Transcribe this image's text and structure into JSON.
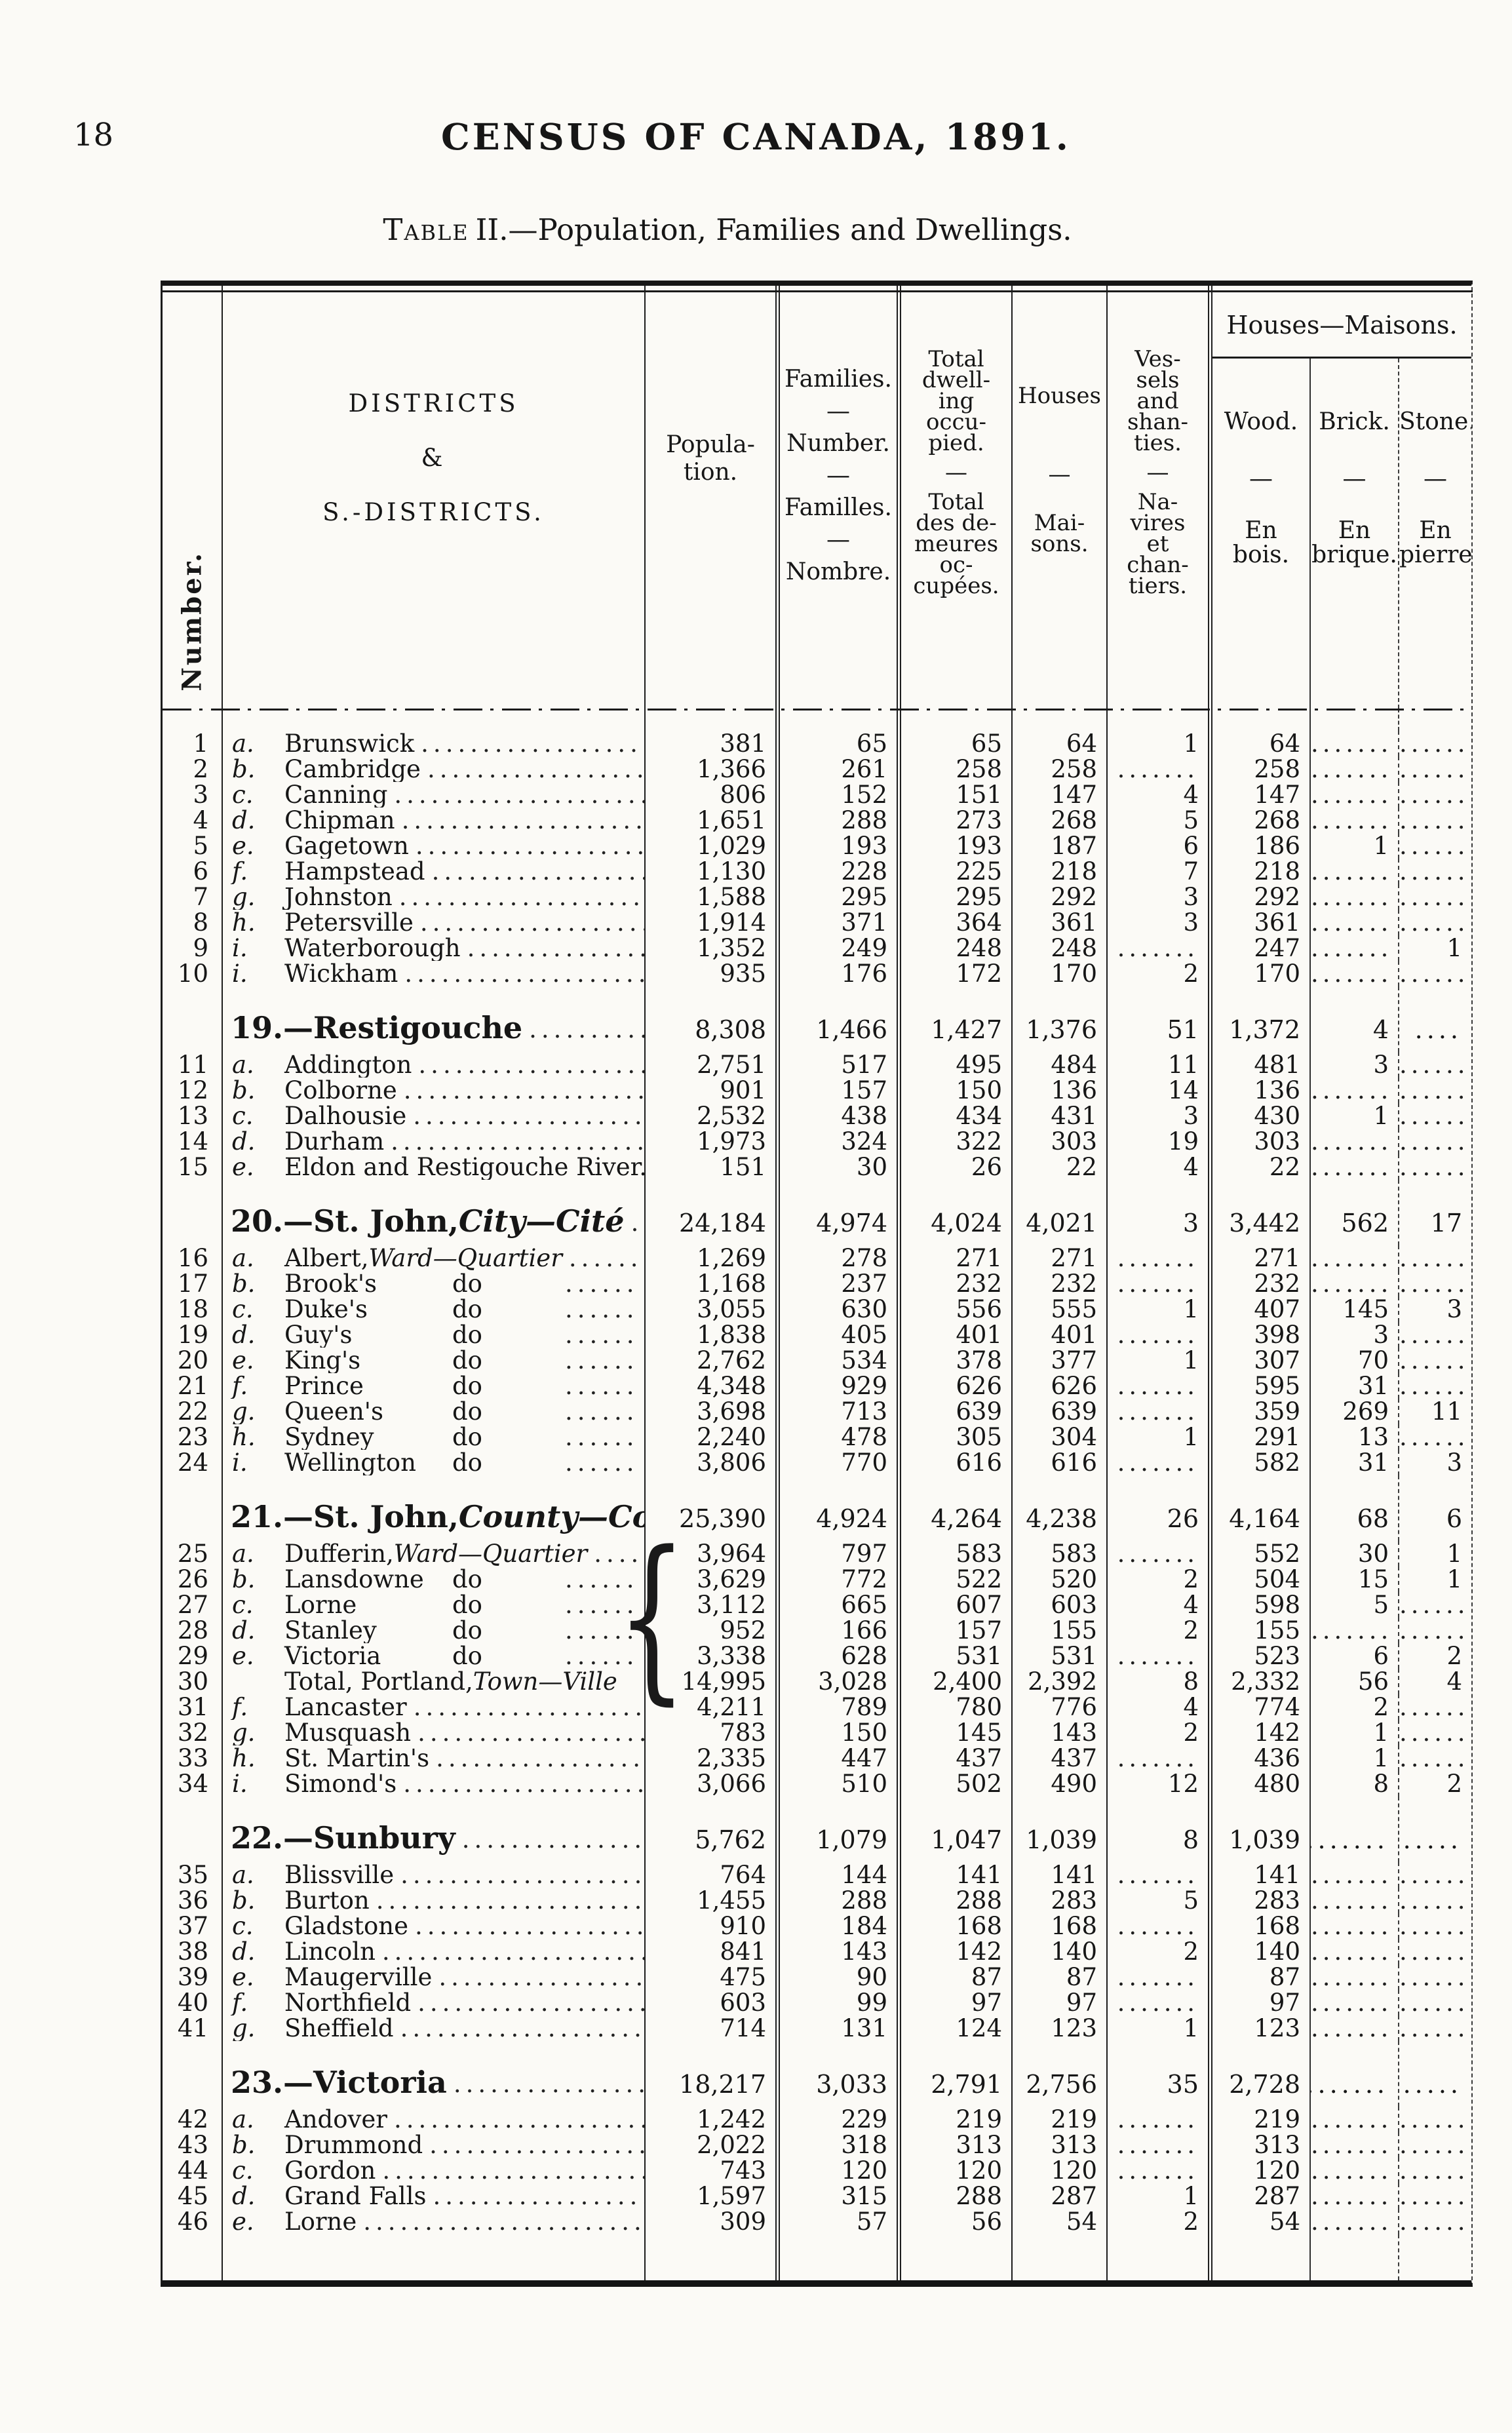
{
  "page": {
    "number": "18",
    "census_title": "CENSUS OF CANADA, 1891.",
    "caption_label": "Table",
    "caption_rest": "II.—Population, Families and Dwellings."
  },
  "table": {
    "brace": "{",
    "leader_dots": "..........................................................................",
    "headers": {
      "number_vertical": "Number.",
      "districts": [
        "DISTRICTS",
        "&",
        "S.-DISTRICTS."
      ],
      "population": [
        "Popula-",
        "tion."
      ],
      "families": [
        "Families.",
        "—",
        "Number.",
        "—",
        "Familles.",
        "—",
        "Nombre."
      ],
      "dwelling": [
        "Total",
        "dwell-",
        "ing",
        "occu-",
        "pied.",
        "—",
        "Total",
        "des de-",
        "meures",
        "oc-",
        "cupées."
      ],
      "houses": [
        "Houses",
        "—",
        "Mai-",
        "sons."
      ],
      "vessels": [
        "Ves-",
        "sels",
        "and",
        "shan-",
        "ties.",
        "—",
        "Na-",
        "vires",
        "et",
        "chan-",
        "tiers."
      ],
      "houses_group": "Houses—Maisons.",
      "wood": [
        "Wood.",
        "—",
        "En",
        "bois."
      ],
      "brick": [
        "Brick.",
        "—",
        "En",
        "brique."
      ],
      "stone": [
        "Stone.",
        "—",
        "En",
        "pierre."
      ]
    },
    "sections": [
      {
        "rows": [
          {
            "n": "1",
            "l": "a.",
            "nm": "Brunswick",
            "v": [
              "381",
              "65",
              "65",
              "64",
              "1",
              "64",
              ".......",
              "......."
            ]
          },
          {
            "n": "2",
            "l": "b.",
            "nm": "Cambridge",
            "v": [
              "1,366",
              "261",
              "258",
              "258",
              ".......",
              "258",
              ".......",
              "......."
            ]
          },
          {
            "n": "3",
            "l": "c.",
            "nm": "Canning",
            "v": [
              "806",
              "152",
              "151",
              "147",
              "4",
              "147",
              ".......",
              "......."
            ]
          },
          {
            "n": "4",
            "l": "d.",
            "nm": "Chipman",
            "v": [
              "1,651",
              "288",
              "273",
              "268",
              "5",
              "268",
              ".......",
              "......."
            ]
          },
          {
            "n": "5",
            "l": "e.",
            "nm": "Gagetown",
            "v": [
              "1,029",
              "193",
              "193",
              "187",
              "6",
              "186",
              "1",
              "......."
            ]
          },
          {
            "n": "6",
            "l": "f.",
            "nm": "Hampstead",
            "v": [
              "1,130",
              "228",
              "225",
              "218",
              "7",
              "218",
              ".......",
              "......."
            ]
          },
          {
            "n": "7",
            "l": "g.",
            "nm": "Johnston",
            "v": [
              "1,588",
              "295",
              "295",
              "292",
              "3",
              "292",
              ".......",
              "......."
            ]
          },
          {
            "n": "8",
            "l": "h.",
            "nm": "Petersville",
            "v": [
              "1,914",
              "371",
              "364",
              "361",
              "3",
              "361",
              ".......",
              "......."
            ]
          },
          {
            "n": "9",
            "l": "i.",
            "nm": "Waterborough",
            "v": [
              "1,352",
              "249",
              "248",
              "248",
              ".......",
              "247",
              ".......",
              "1"
            ]
          },
          {
            "n": "10",
            "l": "i.",
            "nm": "Wickham",
            "v": [
              "935",
              "176",
              "172",
              "170",
              "2",
              "170",
              ".......",
              "......."
            ]
          }
        ]
      },
      {
        "h": {
          "num": "19.",
          "nm": "—Restigouche",
          "vals": [
            "8,308",
            "1,466",
            "1,427",
            "1,376",
            "51",
            "1,372",
            "4",
            ". ...."
          ]
        },
        "rows": [
          {
            "n": "11",
            "l": "a.",
            "nm": "Addington",
            "v": [
              "2,751",
              "517",
              "495",
              "484",
              "11",
              "481",
              "3",
              "......."
            ]
          },
          {
            "n": "12",
            "l": "b.",
            "nm": "Colborne",
            "v": [
              "901",
              "157",
              "150",
              "136",
              "14",
              "136",
              ".......",
              "......."
            ]
          },
          {
            "n": "13",
            "l": "c.",
            "nm": "Dalhousie",
            "v": [
              "2,532",
              "438",
              "434",
              "431",
              "3",
              "430",
              "1",
              "......."
            ]
          },
          {
            "n": "14",
            "l": "d.",
            "nm": "Durham",
            "v": [
              "1,973",
              "324",
              "322",
              "303",
              "19",
              "303",
              ".......",
              "......."
            ]
          },
          {
            "n": "15",
            "l": "e.",
            "nm": "Eldon and Restigouche River..",
            "nold": true,
            "v": [
              "151",
              "30",
              "26",
              "22",
              "4",
              "22",
              ".......",
              "......."
            ]
          }
        ]
      },
      {
        "h": {
          "num": "20.",
          "nm": "—St. John, ",
          "it": "City—Cité",
          "vals": [
            "24,184",
            "4,974",
            "4,024",
            "4,021",
            "3",
            "3,442",
            "562",
            "17"
          ]
        },
        "rows": [
          {
            "n": "16",
            "l": "a.",
            "nm": "Albert, ",
            "it": "Ward—Quartier",
            "v": [
              "1,269",
              "278",
              "271",
              "271",
              ".......",
              "271",
              ".......",
              "......."
            ]
          },
          {
            "n": "17",
            "l": "b.",
            "nm": "Brook's",
            "do": true,
            "v": [
              "1,168",
              "237",
              "232",
              "232",
              ".......",
              "232",
              ".......",
              "......."
            ]
          },
          {
            "n": "18",
            "l": "c.",
            "nm": "Duke's",
            "do": true,
            "v": [
              "3,055",
              "630",
              "556",
              "555",
              "1",
              "407",
              "145",
              "3"
            ]
          },
          {
            "n": "19",
            "l": "d.",
            "nm": "Guy's",
            "do": true,
            "v": [
              "1,838",
              "405",
              "401",
              "401",
              ".......",
              "398",
              "3",
              "......."
            ]
          },
          {
            "n": "20",
            "l": "e.",
            "nm": "King's",
            "do": true,
            "v": [
              "2,762",
              "534",
              "378",
              "377",
              "1",
              "307",
              "70",
              "......."
            ]
          },
          {
            "n": "21",
            "l": "f.",
            "nm": "Prince",
            "do": true,
            "v": [
              "4,348",
              "929",
              "626",
              "626",
              ".......",
              "595",
              "31",
              "......."
            ]
          },
          {
            "n": "22",
            "l": "g.",
            "nm": "Queen's",
            "do": true,
            "v": [
              "3,698",
              "713",
              "639",
              "639",
              ".......",
              "359",
              "269",
              "11"
            ]
          },
          {
            "n": "23",
            "l": "h.",
            "nm": "Sydney",
            "do": true,
            "v": [
              "2,240",
              "478",
              "305",
              "304",
              "1",
              "291",
              "13",
              "......."
            ]
          },
          {
            "n": "24",
            "l": "i.",
            "nm": "Wellington",
            "do": true,
            "v": [
              "3,806",
              "770",
              "616",
              "616",
              ".......",
              "582",
              "31",
              "3"
            ]
          }
        ]
      },
      {
        "h": {
          "num": "21.",
          "nm": "—St. John, ",
          "it": "County—Comté.",
          "nold": true,
          "vals": [
            "25,390",
            "4,924",
            "4,264",
            "4,238",
            "26",
            "4,164",
            "68",
            "6"
          ]
        },
        "brace_rows": [
          0,
          5
        ],
        "rows": [
          {
            "n": "25",
            "l": "a.",
            "nm": "Dufferin, ",
            "it": "Ward—Quartier",
            "v": [
              "3,964",
              "797",
              "583",
              "583",
              ".......",
              "552",
              "30",
              "1"
            ]
          },
          {
            "n": "26",
            "l": "b.",
            "nm": "Lansdowne",
            "do": true,
            "v": [
              "3,629",
              "772",
              "522",
              "520",
              "2",
              "504",
              "15",
              "1"
            ]
          },
          {
            "n": "27",
            "l": "c.",
            "nm": "Lorne",
            "do": true,
            "v": [
              "3,112",
              "665",
              "607",
              "603",
              "4",
              "598",
              "5",
              "......."
            ]
          },
          {
            "n": "28",
            "l": "d.",
            "nm": "Stanley",
            "do": true,
            "v": [
              "952",
              "166",
              "157",
              "155",
              "2",
              "155",
              ".......",
              "......."
            ]
          },
          {
            "n": "29",
            "l": "e.",
            "nm": "Victoria",
            "do": true,
            "v": [
              "3,338",
              "628",
              "531",
              "531",
              ".......",
              "523",
              "6",
              "2"
            ]
          },
          {
            "n": "30",
            "l": "",
            "nm": "Total, Portland, ",
            "it": "Town—Ville",
            "nold": true,
            "v": [
              "14,995",
              "3,028",
              "2,400",
              "2,392",
              "8",
              "2,332",
              "56",
              "4"
            ]
          },
          {
            "n": "31",
            "l": "f.",
            "nm": "Lancaster",
            "v": [
              "4,211",
              "789",
              "780",
              "776",
              "4",
              "774",
              "2",
              "......."
            ]
          },
          {
            "n": "32",
            "l": "g.",
            "nm": "Musquash",
            "v": [
              "783",
              "150",
              "145",
              "143",
              "2",
              "142",
              "1",
              "......."
            ]
          },
          {
            "n": "33",
            "l": "h.",
            "nm": "St. Martin's",
            "v": [
              "2,335",
              "447",
              "437",
              "437",
              ".......",
              "436",
              "1",
              "......."
            ]
          },
          {
            "n": "34",
            "l": "i.",
            "nm": "Simond's",
            "v": [
              "3,066",
              "510",
              "502",
              "490",
              "12",
              "480",
              "8",
              "2"
            ]
          }
        ]
      },
      {
        "h": {
          "num": "22.",
          "nm": "—Sunbury",
          "vals": [
            "5,762",
            "1,079",
            "1,047",
            "1,039",
            "8",
            "1,039",
            ".......",
            "......."
          ]
        },
        "rows": [
          {
            "n": "35",
            "l": "a.",
            "nm": "Blissville",
            "v": [
              "764",
              "144",
              "141",
              "141",
              ".......",
              "141",
              ".......",
              "......."
            ]
          },
          {
            "n": "36",
            "l": "b.",
            "nm": "Burton",
            "v": [
              "1,455",
              "288",
              "288",
              "283",
              "5",
              "283",
              ".......",
              "......."
            ]
          },
          {
            "n": "37",
            "l": "c.",
            "nm": "Gladstone",
            "v": [
              "910",
              "184",
              "168",
              "168",
              ".......",
              "168",
              ".......",
              "......."
            ]
          },
          {
            "n": "38",
            "l": "d.",
            "nm": "Lincoln",
            "v": [
              "841",
              "143",
              "142",
              "140",
              "2",
              "140",
              ".......",
              "......."
            ]
          },
          {
            "n": "39",
            "l": "e.",
            "nm": "Maugerville",
            "v": [
              "475",
              "90",
              "87",
              "87",
              ".......",
              "87",
              ".......",
              "......."
            ]
          },
          {
            "n": "40",
            "l": "f.",
            "nm": "Northfield",
            "v": [
              "603",
              "99",
              "97",
              "97",
              ".......",
              "97",
              ".......",
              "......."
            ]
          },
          {
            "n": "41",
            "l": "g.",
            "nm": "Sheffield",
            "v": [
              "714",
              "131",
              "124",
              "123",
              "1",
              "123",
              ".......",
              "......."
            ]
          }
        ]
      },
      {
        "h": {
          "num": "23.",
          "nm": "—Victoria",
          "vals": [
            "18,217",
            "3,033",
            "2,791",
            "2,756",
            "35",
            "2,728",
            ".......",
            "......."
          ]
        },
        "rows": [
          {
            "n": "42",
            "l": "a.",
            "nm": "Andover",
            "v": [
              "1,242",
              "229",
              "219",
              "219",
              ".......",
              "219",
              ".......",
              "......."
            ]
          },
          {
            "n": "43",
            "l": "b.",
            "nm": "Drummond",
            "v": [
              "2,022",
              "318",
              "313",
              "313",
              ".......",
              "313",
              ".......",
              "......."
            ]
          },
          {
            "n": "44",
            "l": "c.",
            "nm": "Gordon",
            "v": [
              "743",
              "120",
              "120",
              "120",
              ".......",
              "120",
              ".......",
              "......."
            ]
          },
          {
            "n": "45",
            "l": "d.",
            "nm": "Grand Falls",
            "v": [
              "1,597",
              "315",
              "288",
              "287",
              "1",
              "287",
              ".......",
              "......."
            ]
          },
          {
            "n": "46",
            "l": "e.",
            "nm": "Lorne",
            "v": [
              "309",
              "57",
              "56",
              "54",
              "2",
              "54",
              ".......",
              "......."
            ]
          }
        ]
      }
    ]
  }
}
